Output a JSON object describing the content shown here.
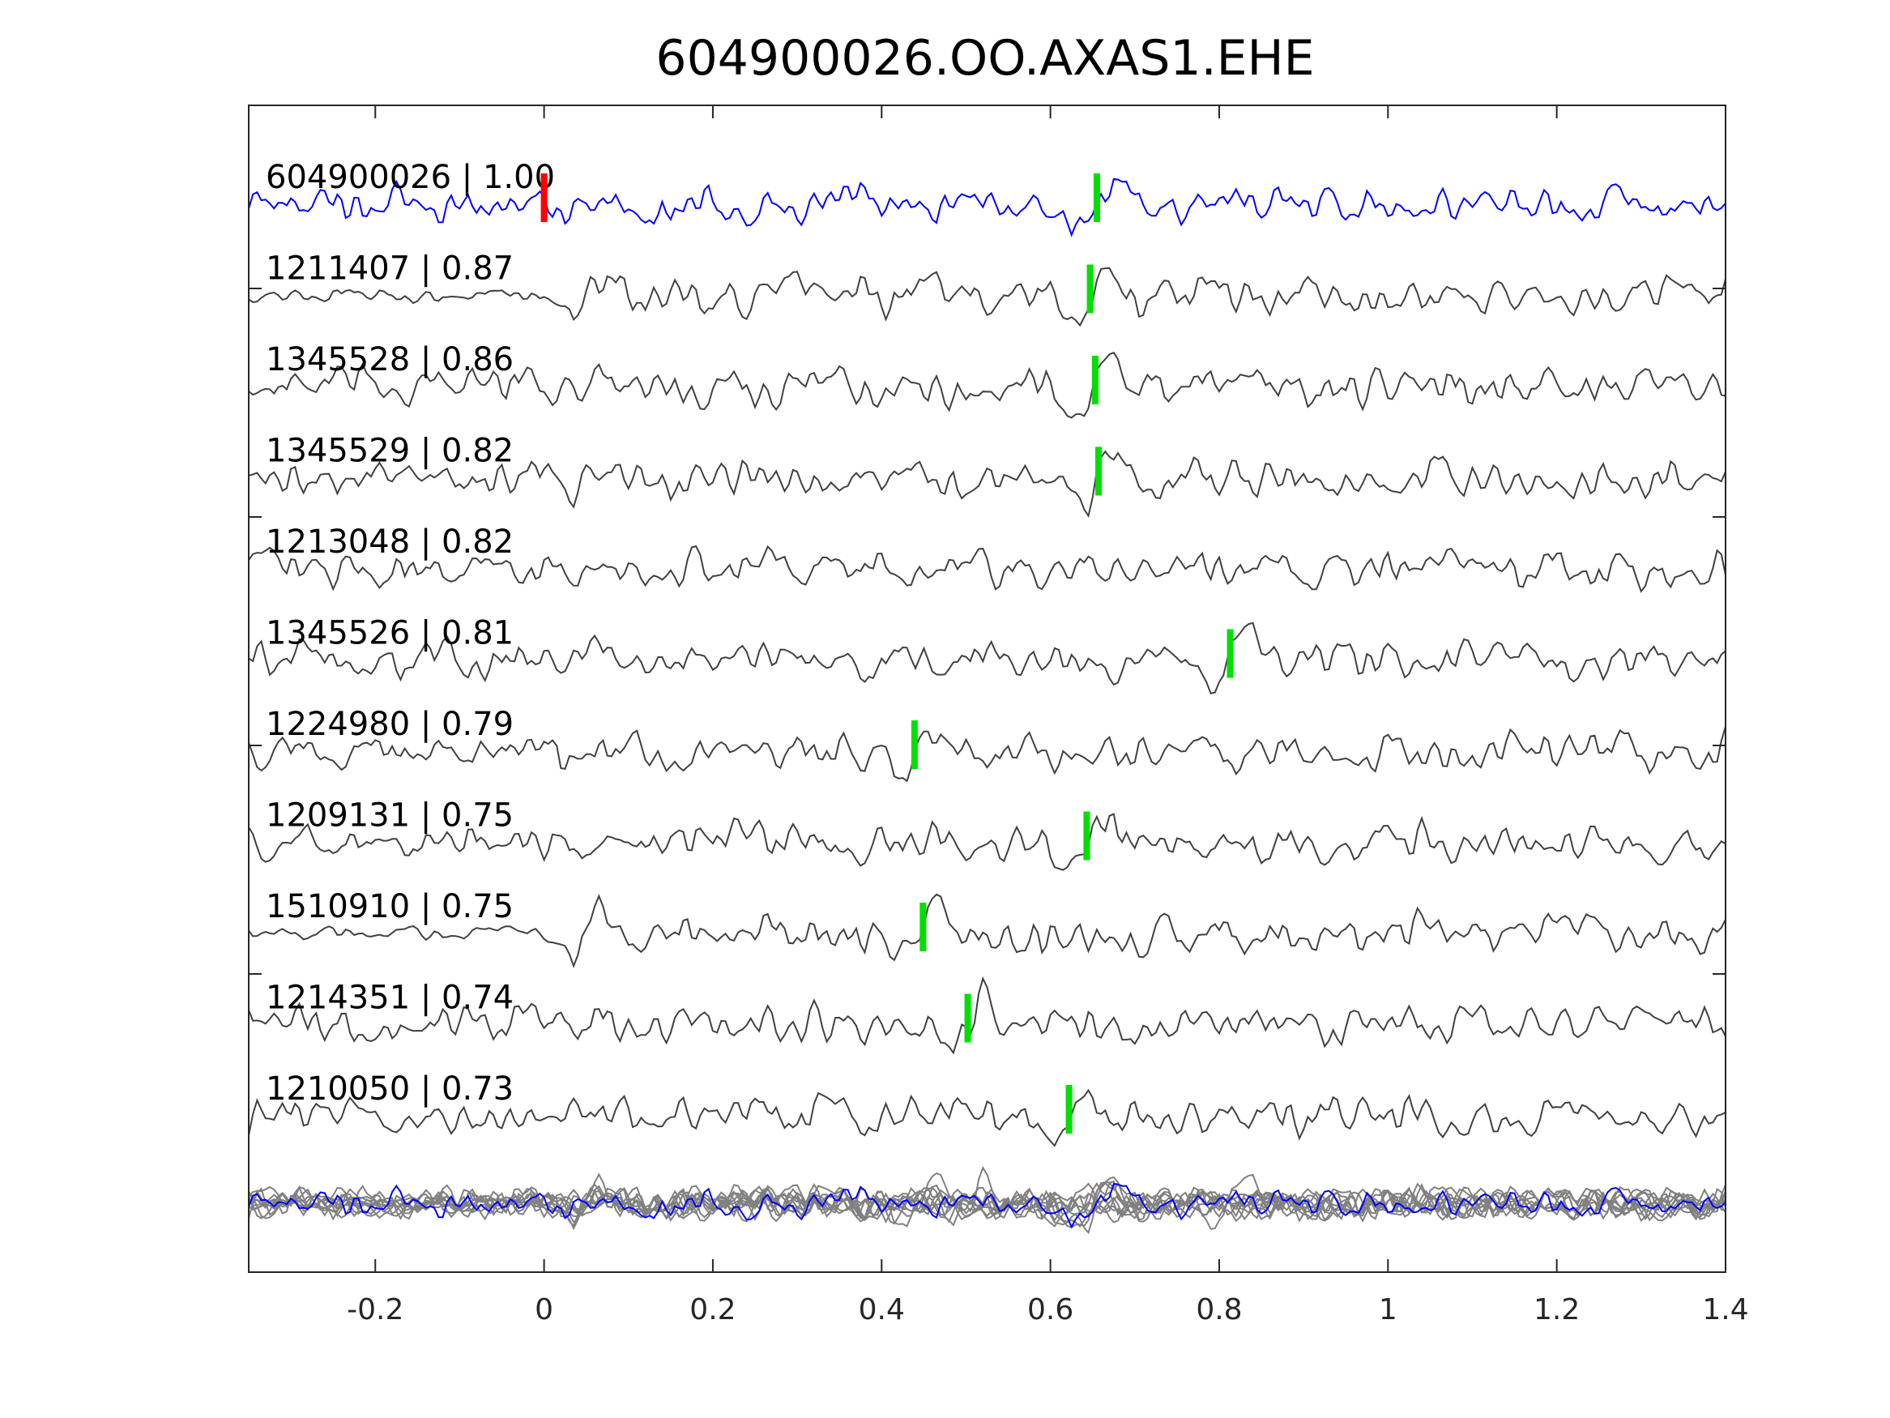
{
  "chart_data": {
    "type": "line",
    "title": "604900026.OO.AXAS1.EHE",
    "xlabel": "",
    "ylabel": "",
    "xlim": [
      -0.35,
      1.4
    ],
    "xticks": [
      "-0.2",
      "0",
      "0.2",
      "0.4",
      "0.6",
      "0.8",
      "1",
      "1.2",
      "1.4"
    ],
    "xtick_values": [
      -0.2,
      0,
      0.2,
      0.4,
      0.6,
      0.8,
      1,
      1.2,
      1.4
    ],
    "grid": false,
    "colors": {
      "template": "#0000ff",
      "trace": "#404040",
      "stack": "#808080",
      "pick": "#00e000",
      "ref_pick": "#ff0000"
    },
    "ref_pick_time": 0,
    "traces": [
      {
        "label": "604900026 | 1.00",
        "pick": 0.655,
        "template": true
      },
      {
        "label": "1211407 | 0.87",
        "pick": 0.647
      },
      {
        "label": "1345528 | 0.86",
        "pick": 0.653
      },
      {
        "label": "1345529 | 0.82",
        "pick": 0.657
      },
      {
        "label": "1213048 | 0.82",
        "pick": null
      },
      {
        "label": "1345526 | 0.81",
        "pick": 0.813
      },
      {
        "label": "1224980 | 0.79",
        "pick": 0.439
      },
      {
        "label": "1209131 | 0.75",
        "pick": 0.643
      },
      {
        "label": "1510910 | 0.75",
        "pick": 0.449
      },
      {
        "label": "1214351 | 0.74",
        "pick": 0.502
      },
      {
        "label": "1210050 | 0.73",
        "pick": 0.622
      }
    ]
  }
}
